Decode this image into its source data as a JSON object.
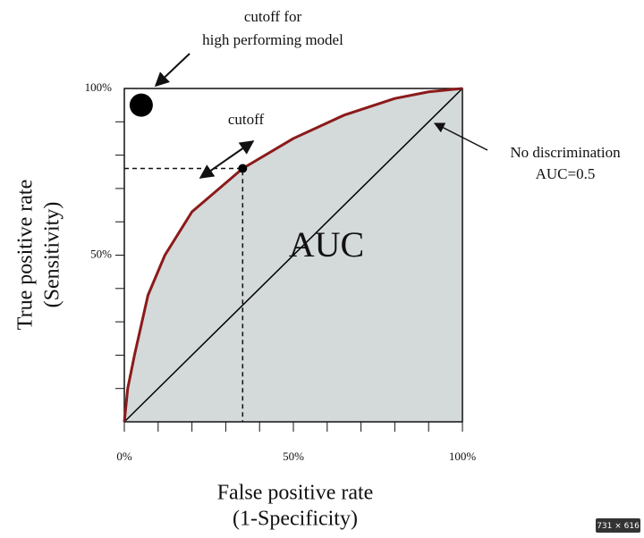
{
  "chart_data": {
    "type": "roc",
    "xlim": [
      0,
      100
    ],
    "ylim": [
      0,
      100
    ],
    "xticks": [
      {
        "value": 0,
        "label": "0%"
      },
      {
        "value": 50,
        "label": "50%"
      },
      {
        "value": 100,
        "label": "100%"
      }
    ],
    "yticks": [
      {
        "value": 50,
        "label": "50%"
      },
      {
        "value": 100,
        "label": "100%"
      }
    ],
    "x_minor_ticks": [
      0,
      10,
      20,
      30,
      40,
      50,
      60,
      70,
      80,
      90,
      100
    ],
    "y_minor_ticks": [
      10,
      20,
      30,
      40,
      50,
      60,
      70,
      80,
      90
    ],
    "roc_curve": {
      "x": [
        0,
        1,
        3,
        7,
        12,
        20,
        35,
        50,
        65,
        80,
        90,
        100
      ],
      "y": [
        0,
        10,
        20,
        38,
        50,
        63,
        76,
        85,
        92,
        97,
        99,
        100
      ],
      "color": "#8b1a1a",
      "fill_color": "#d4d9d9"
    },
    "diagonal": {
      "x": [
        0,
        100
      ],
      "y": [
        0,
        100
      ],
      "color": "#000000"
    },
    "points": [
      {
        "x": 5,
        "y": 95
      },
      {
        "x": 35,
        "y": 76
      }
    ],
    "xlabel": [
      "False positive rate",
      "(1-Specificity)"
    ],
    "ylabel": [
      "True positive rate",
      "(Sensitivity)"
    ],
    "annotations": {
      "best": [
        "cutoff for",
        "high performing model"
      ],
      "cutoff": "cutoff",
      "diagonal": [
        "No discrimination",
        "AUC=0.5"
      ],
      "area": "AUC"
    },
    "badge": "731 × 616"
  }
}
